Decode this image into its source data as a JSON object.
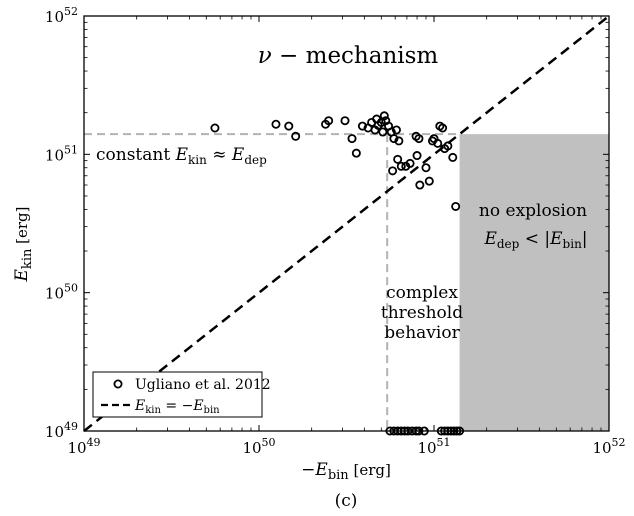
{
  "chart_data": {
    "type": "scatter",
    "log_x": true,
    "log_y": true,
    "xlim": [
      1e+49,
      1e+52
    ],
    "ylim": [
      1e+49,
      1e+52
    ],
    "x_ticks": [
      {
        "value": 1e+49,
        "base": "10",
        "exp": "49"
      },
      {
        "value": 1e+50,
        "base": "10",
        "exp": "50"
      },
      {
        "value": 1e+51,
        "base": "10",
        "exp": "51"
      },
      {
        "value": 1e+52,
        "base": "10",
        "exp": "52"
      }
    ],
    "y_ticks": [
      {
        "value": 1e+49,
        "base": "10",
        "exp": "49"
      },
      {
        "value": 1e+50,
        "base": "10",
        "exp": "50"
      },
      {
        "value": 1e+51,
        "base": "10",
        "exp": "51"
      },
      {
        "value": 1e+52,
        "base": "10",
        "exp": "52"
      }
    ],
    "xlabel": {
      "prefix": "−",
      "symbol": "E",
      "sub": "bin",
      "unit": "[erg]"
    },
    "ylabel": {
      "symbol": "E",
      "sub": "kin",
      "unit": "[erg]"
    },
    "caption": "(c)",
    "grid": false,
    "legend_position": "bottom-left",
    "shaded_region": {
      "x_from": 1.4e+51,
      "x_to": 1e+52,
      "y_from": 1e+49,
      "y_to": 1.4e+51,
      "color": "#c0c0c0"
    },
    "threshold_lines": {
      "horizontal_y": 1.4e+51,
      "vertical_x": 5.4e+50,
      "color": "#b3b3b3"
    },
    "annotations": {
      "mechanism": {
        "greek": "ν",
        "rest": " − mechanism"
      },
      "constant": {
        "text": "constant ",
        "lhs_symbol": "E",
        "lhs_sub": "kin",
        "op": " ≈ ",
        "rhs_symbol": "E",
        "rhs_sub": "dep"
      },
      "no_explosion": {
        "line1": "no explosion",
        "lhs_symbol": "E",
        "lhs_sub": "dep",
        "op": " < |",
        "rhs_symbol": "E",
        "rhs_sub": "bin",
        "close": "|"
      },
      "complex": [
        "complex",
        "threshold",
        "behavior"
      ]
    },
    "series": [
      {
        "name": "Ugliano et al. 2012",
        "kind": "markers",
        "marker": "open-circle",
        "points": [
          [
            5.8e+50,
            7.6e+50
          ],
          [
            6.2e+50,
            9.2e+50
          ],
          [
            6.5e+50,
            8.2e+50
          ],
          [
            6.9e+50,
            8.2e+50
          ],
          [
            7.3e+50,
            8.6e+50
          ],
          [
            8e+50,
            9.8e+50
          ],
          [
            7.9e+50,
            1.35e+51
          ],
          [
            8.2e+50,
            1.3e+51
          ],
          [
            8.3e+50,
            6e+50
          ],
          [
            9e+50,
            8e+50
          ],
          [
            9.4e+50,
            6.4e+50
          ],
          [
            9.8e+50,
            1.25e+51
          ],
          [
            1.05e+51,
            1.2e+51
          ],
          [
            1.08e+51,
            1.6e+51
          ],
          [
            1.12e+51,
            1.55e+51
          ],
          [
            1e+51,
            1.3e+51
          ],
          [
            1.15e+51,
            1.1e+51
          ],
          [
            1.2e+51,
            1.15e+51
          ],
          [
            1.28e+51,
            9.5e+50
          ],
          [
            1.33e+51,
            4.2e+50
          ],
          [
            5.6e+49,
            1.55e+51
          ],
          [
            1.25e+50,
            1.65e+51
          ],
          [
            1.48e+50,
            1.6e+51
          ],
          [
            1.62e+50,
            1.35e+51
          ],
          [
            2.4e+50,
            1.65e+51
          ],
          [
            2.5e+50,
            1.75e+51
          ],
          [
            3.1e+50,
            1.75e+51
          ],
          [
            3.4e+50,
            1.3e+51
          ],
          [
            3.6e+50,
            1.02e+51
          ],
          [
            3.9e+50,
            1.6e+51
          ],
          [
            4.2e+50,
            1.55e+51
          ],
          [
            4.4e+50,
            1.7e+51
          ],
          [
            4.6e+50,
            1.5e+51
          ],
          [
            4.7e+50,
            1.8e+51
          ],
          [
            4.8e+50,
            1.62e+51
          ],
          [
            5e+50,
            1.7e+51
          ],
          [
            5.1e+50,
            1.45e+51
          ],
          [
            5.2e+50,
            1.9e+51
          ],
          [
            5.3e+50,
            1.75e+51
          ],
          [
            5.5e+50,
            1.6e+51
          ],
          [
            5.7e+50,
            1.45e+51
          ],
          [
            5.9e+50,
            1.3e+51
          ],
          [
            6.1e+50,
            1.5e+51
          ],
          [
            6.3e+50,
            1.25e+51
          ],
          [
            5.6e+50,
            1e+49
          ],
          [
            5.9e+50,
            1e+49
          ],
          [
            6.2e+50,
            1e+49
          ],
          [
            6.5e+50,
            1e+49
          ],
          [
            6.8e+50,
            1e+49
          ],
          [
            7.1e+50,
            1e+49
          ],
          [
            7.5e+50,
            1e+49
          ],
          [
            7.9e+50,
            1e+49
          ],
          [
            8.2e+50,
            1e+49
          ],
          [
            8.8e+50,
            1e+49
          ],
          [
            1.1e+51,
            1e+49
          ],
          [
            1.15e+51,
            1e+49
          ],
          [
            1.2e+51,
            1e+49
          ],
          [
            1.25e+51,
            1e+49
          ],
          [
            1.3e+51,
            1e+49
          ],
          [
            1.35e+51,
            1e+49
          ],
          [
            1.4e+51,
            1e+49
          ]
        ]
      },
      {
        "name_symbol_lhs": "E",
        "name_sub_lhs": "kin",
        "name_op": " = −",
        "name_symbol_rhs": "E",
        "name_sub_rhs": "bin",
        "kind": "dashed-line",
        "points": [
          [
            1e+49,
            1e+49
          ],
          [
            1e+52,
            1e+52
          ]
        ]
      }
    ]
  }
}
